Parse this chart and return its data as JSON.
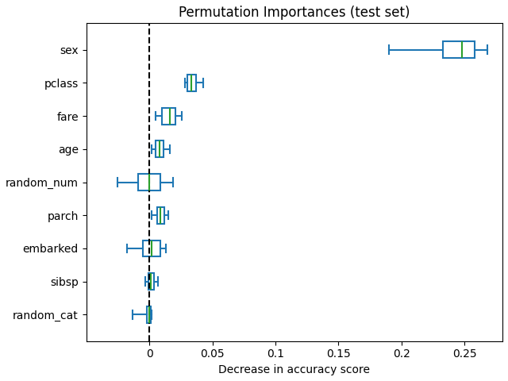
{
  "title": "Permutation Importances (test set)",
  "xlabel": "Decrease in accuracy score",
  "features": [
    "sex",
    "pclass",
    "fare",
    "age",
    "random_num",
    "parch",
    "embarked",
    "sibsp",
    "random_cat"
  ],
  "box_data": {
    "sex": {
      "whislo": 0.19,
      "q1": 0.233,
      "med": 0.248,
      "q3": 0.258,
      "whishi": 0.268
    },
    "pclass": {
      "whislo": 0.028,
      "q1": 0.03,
      "med": 0.033,
      "q3": 0.037,
      "whishi": 0.043
    },
    "fare": {
      "whislo": 0.005,
      "q1": 0.01,
      "med": 0.016,
      "q3": 0.021,
      "whishi": 0.026
    },
    "age": {
      "whislo": 0.002,
      "q1": 0.005,
      "med": 0.008,
      "q3": 0.011,
      "whishi": 0.016
    },
    "random_num": {
      "whislo": -0.025,
      "q1": -0.009,
      "med": 0.0,
      "q3": 0.009,
      "whishi": 0.019
    },
    "parch": {
      "whislo": 0.002,
      "q1": 0.006,
      "med": 0.009,
      "q3": 0.012,
      "whishi": 0.015
    },
    "embarked": {
      "whislo": -0.018,
      "q1": -0.005,
      "med": 0.002,
      "q3": 0.009,
      "whishi": 0.013
    },
    "sibsp": {
      "whislo": -0.003,
      "q1": -0.001,
      "med": 0.001,
      "q3": 0.004,
      "whishi": 0.007
    },
    "random_cat": {
      "whislo": -0.013,
      "q1": -0.002,
      "med": 0.0,
      "q3": 0.001,
      "whishi": 0.002
    }
  },
  "box_color": "#1f77b4",
  "median_color": "#2ca02c",
  "dashed_line_x": 0.0,
  "xlim": [
    -0.05,
    0.28
  ],
  "xticks": [
    0.0,
    0.05,
    0.1,
    0.15,
    0.2,
    0.25
  ],
  "background_color": "#ffffff"
}
